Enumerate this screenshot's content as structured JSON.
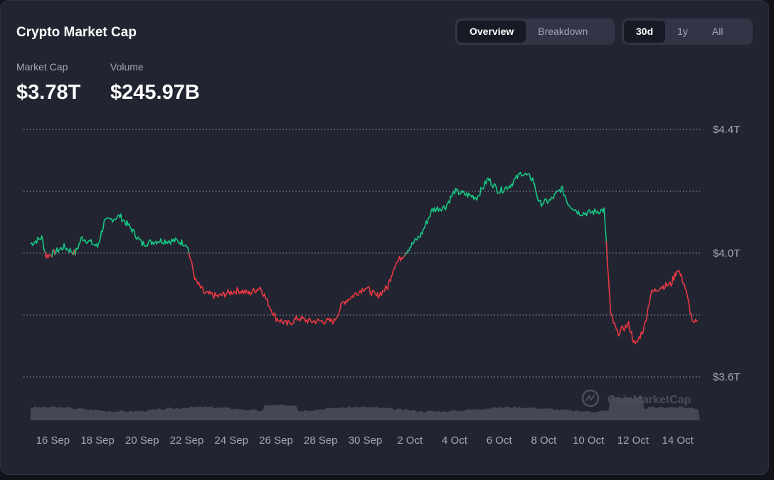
{
  "header": {
    "title": "Crypto Market Cap",
    "view_tabs": [
      {
        "label": "Overview",
        "active": true
      },
      {
        "label": "Breakdown",
        "active": false
      }
    ],
    "range_tabs": [
      {
        "label": "30d",
        "active": true
      },
      {
        "label": "1y",
        "active": false
      },
      {
        "label": "All",
        "active": false
      }
    ]
  },
  "stats": {
    "market_cap_label": "Market Cap",
    "market_cap_value": "$3.78T",
    "volume_label": "Volume",
    "volume_value": "$245.97B"
  },
  "watermark": "CoinMarketCap",
  "colors": {
    "up": "#16c784",
    "down": "#ea3943",
    "background": "#222531",
    "volume": "#4a4e5c"
  },
  "chart_data": {
    "type": "line",
    "baseline": 4.0,
    "x_labels": [
      "16 Sep",
      "18 Sep",
      "20 Sep",
      "22 Sep",
      "24 Sep",
      "26 Sep",
      "28 Sep",
      "30 Sep",
      "2 Oct",
      "4 Oct",
      "6 Oct",
      "8 Oct",
      "10 Oct",
      "12 Oct",
      "14 Oct"
    ],
    "y_ticks": [
      {
        "value": 4.4,
        "label": "$4.4T"
      },
      {
        "value": 4.0,
        "label": "$4.0T"
      },
      {
        "value": 3.6,
        "label": "$3.6T"
      }
    ],
    "ylim": [
      3.6,
      4.4
    ],
    "grid": "dotted horizontal",
    "series": [
      {
        "values": [
          {
            "x": 15.0,
            "y": 4.03
          },
          {
            "x": 15.5,
            "y": 4.05
          },
          {
            "x": 15.7,
            "y": 3.99
          },
          {
            "x": 16.0,
            "y": 4.0
          },
          {
            "x": 16.5,
            "y": 4.02
          },
          {
            "x": 17.0,
            "y": 4.0
          },
          {
            "x": 17.3,
            "y": 4.05
          },
          {
            "x": 17.8,
            "y": 4.03
          },
          {
            "x": 18.0,
            "y": 4.02
          },
          {
            "x": 18.3,
            "y": 4.1
          },
          {
            "x": 19.0,
            "y": 4.12
          },
          {
            "x": 19.5,
            "y": 4.08
          },
          {
            "x": 20.0,
            "y": 4.03
          },
          {
            "x": 20.7,
            "y": 4.04
          },
          {
            "x": 21.5,
            "y": 4.04
          },
          {
            "x": 22.0,
            "y": 4.03
          },
          {
            "x": 22.4,
            "y": 3.91
          },
          {
            "x": 22.8,
            "y": 3.87
          },
          {
            "x": 23.4,
            "y": 3.86
          },
          {
            "x": 23.8,
            "y": 3.87
          },
          {
            "x": 24.3,
            "y": 3.88
          },
          {
            "x": 24.8,
            "y": 3.87
          },
          {
            "x": 25.3,
            "y": 3.89
          },
          {
            "x": 25.7,
            "y": 3.83
          },
          {
            "x": 26.0,
            "y": 3.79
          },
          {
            "x": 26.5,
            "y": 3.77
          },
          {
            "x": 27.0,
            "y": 3.79
          },
          {
            "x": 27.5,
            "y": 3.78
          },
          {
            "x": 28.0,
            "y": 3.78
          },
          {
            "x": 28.6,
            "y": 3.78
          },
          {
            "x": 29.0,
            "y": 3.84
          },
          {
            "x": 29.6,
            "y": 3.87
          },
          {
            "x": 30.0,
            "y": 3.89
          },
          {
            "x": 30.5,
            "y": 3.86
          },
          {
            "x": 31.0,
            "y": 3.89
          },
          {
            "x": 31.3,
            "y": 3.96
          },
          {
            "x": 32.0,
            "y": 4.02
          },
          {
            "x": 32.5,
            "y": 4.06
          },
          {
            "x": 33.0,
            "y": 4.14
          },
          {
            "x": 33.6,
            "y": 4.15
          },
          {
            "x": 34.0,
            "y": 4.2
          },
          {
            "x": 34.5,
            "y": 4.19
          },
          {
            "x": 35.0,
            "y": 4.18
          },
          {
            "x": 35.5,
            "y": 4.24
          },
          {
            "x": 36.0,
            "y": 4.2
          },
          {
            "x": 36.5,
            "y": 4.22
          },
          {
            "x": 37.0,
            "y": 4.26
          },
          {
            "x": 37.5,
            "y": 4.24
          },
          {
            "x": 37.8,
            "y": 4.16
          },
          {
            "x": 38.3,
            "y": 4.17
          },
          {
            "x": 38.8,
            "y": 4.21
          },
          {
            "x": 39.1,
            "y": 4.16
          },
          {
            "x": 39.6,
            "y": 4.13
          },
          {
            "x": 40.0,
            "y": 4.13
          },
          {
            "x": 40.7,
            "y": 4.14
          },
          {
            "x": 40.8,
            "y": 4.03
          },
          {
            "x": 41.0,
            "y": 3.8
          },
          {
            "x": 41.3,
            "y": 3.74
          },
          {
            "x": 41.8,
            "y": 3.77
          },
          {
            "x": 42.1,
            "y": 3.7
          },
          {
            "x": 42.5,
            "y": 3.76
          },
          {
            "x": 42.8,
            "y": 3.87
          },
          {
            "x": 43.2,
            "y": 3.89
          },
          {
            "x": 43.7,
            "y": 3.9
          },
          {
            "x": 44.0,
            "y": 3.95
          },
          {
            "x": 44.3,
            "y": 3.9
          },
          {
            "x": 44.6,
            "y": 3.8
          },
          {
            "x": 44.7,
            "y": 3.77
          },
          {
            "x": 44.9,
            "y": 3.78
          }
        ]
      }
    ],
    "volume_note": "volume area shown beneath price line"
  }
}
